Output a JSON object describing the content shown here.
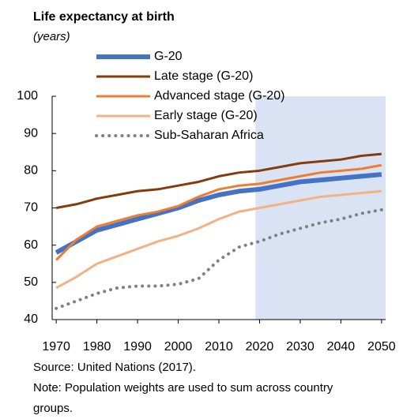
{
  "chart_data": {
    "type": "line",
    "title": "Life expectancy at birth",
    "subtitle": "(years)",
    "x": [
      1970,
      1975,
      1980,
      1985,
      1990,
      1995,
      2000,
      2005,
      2010,
      2015,
      2020,
      2025,
      2030,
      2035,
      2040,
      2045,
      2050
    ],
    "series": [
      {
        "name": "G-20",
        "color": "#4472c4",
        "style": "thick",
        "values": [
          58,
          61,
          64,
          65.5,
          67,
          68.5,
          70,
          72,
          73.5,
          74.5,
          75,
          76,
          77,
          77.5,
          78,
          78.5,
          79
        ]
      },
      {
        "name": "Late stage (G-20)",
        "color": "#843c0c",
        "style": "solid",
        "values": [
          70,
          71,
          72.5,
          73.5,
          74.5,
          75,
          76,
          77,
          78.5,
          79.5,
          80,
          81,
          82,
          82.5,
          83,
          84,
          84.5
        ]
      },
      {
        "name": "Advanced stage (G-20)",
        "color": "#ed7d31",
        "style": "solid",
        "values": [
          56,
          61.5,
          65,
          66.5,
          68,
          69,
          70.5,
          73,
          75,
          76,
          76.5,
          77.5,
          78.5,
          79.5,
          80,
          80.5,
          81.5
        ]
      },
      {
        "name": "Early stage (G-20)",
        "color": "#f4b183",
        "style": "solid",
        "values": [
          48.5,
          51.5,
          55,
          57,
          59,
          61,
          62.5,
          64.5,
          67,
          69,
          70,
          71,
          72,
          73,
          73.5,
          74,
          74.5
        ]
      },
      {
        "name": "Sub-Saharan Africa",
        "color": "#808080",
        "style": "dotted",
        "values": [
          43,
          45,
          47,
          48.5,
          49,
          49,
          49.5,
          51,
          56,
          59.5,
          61,
          63,
          64.5,
          66,
          67,
          68.5,
          69.5
        ]
      }
    ],
    "highlight_xlim": [
      2019,
      2051
    ],
    "highlight_color": "#dae3f3",
    "xlim": [
      1969,
      2051
    ],
    "xticks": [
      1970,
      1980,
      1990,
      2000,
      2010,
      2020,
      2030,
      2040,
      2050
    ],
    "ylim": [
      40,
      100
    ],
    "yticks": [
      40,
      50,
      60,
      70,
      80,
      90,
      100
    ],
    "source": "Source: United Nations (2017).",
    "note": "Note: Population weights are used to sum across country groups."
  }
}
